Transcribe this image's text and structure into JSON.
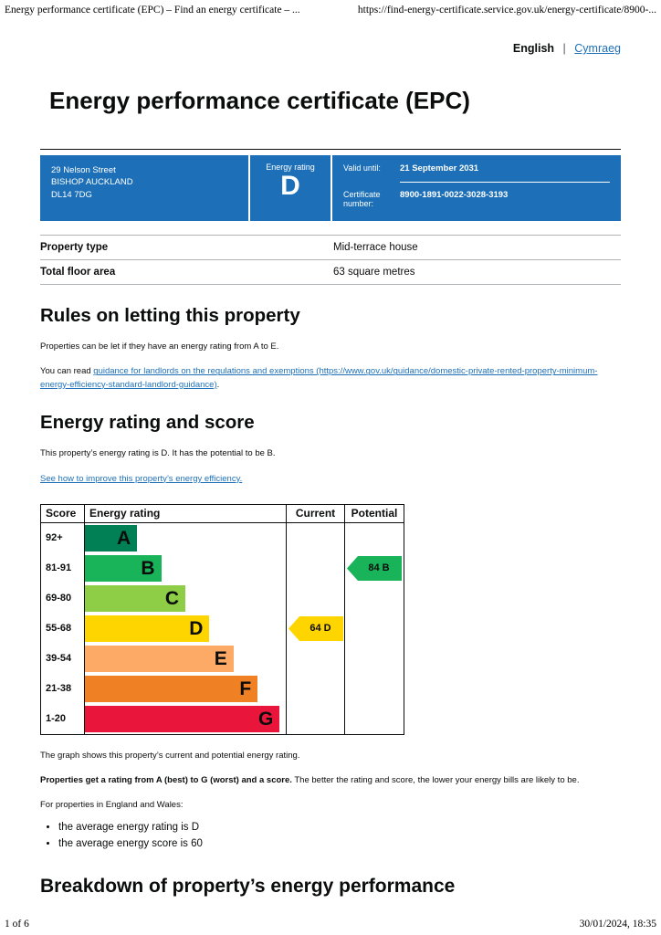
{
  "print_header": {
    "doc_title": "Energy performance certificate (EPC) – Find an energy certificate – ...",
    "url": "https://find-energy-certificate.service.gov.uk/energy-certificate/8900-..."
  },
  "print_footer": {
    "page_indicator": "1 of 6",
    "timestamp": "30/01/2024, 18:35"
  },
  "language_switcher": {
    "current": "English",
    "separator": "|",
    "alternate": "Cymraeg"
  },
  "page_title": "Energy performance certificate (EPC)",
  "summary": {
    "address_line1": "29 Nelson Street",
    "address_line2": "BISHOP AUCKLAND",
    "address_line3": "DL14 7DG",
    "rating_label": "Energy rating",
    "rating_value": "D",
    "valid_until_label": "Valid until:",
    "valid_until_value": "21 September 2031",
    "certificate_number_label": "Certificate number:",
    "certificate_number_value": "8900-1891-0022-3028-3193"
  },
  "property_facts": {
    "rows": [
      {
        "label": "Property type",
        "value": "Mid-terrace house"
      },
      {
        "label": "Total floor area",
        "value": "63 square metres"
      }
    ]
  },
  "letting_rules": {
    "heading": "Rules on letting this property",
    "intro": "Properties can be let if they have an energy rating from A to E.",
    "guidance_prefix": "You can read ",
    "guidance_link": "guidance for landlords on the regulations and exemptions (https://www.gov.uk/guidance/domestic-private-rented-property-minimum-energy-efficiency-standard-landlord-guidance)",
    "guidance_suffix": "."
  },
  "rating_score": {
    "heading": "Energy rating and score",
    "summary_text": "This property’s energy rating is D. It has the potential to be B.",
    "improve_link": "See how to improve this property’s energy efficiency."
  },
  "chart_data": {
    "type": "epc-rating-bands",
    "columns": {
      "score": "Score",
      "rating": "Energy rating",
      "current": "Current",
      "potential": "Potential"
    },
    "bands": [
      {
        "score": "92+",
        "letter": "A",
        "color": "#008054",
        "width_pct": 26
      },
      {
        "score": "81-91",
        "letter": "B",
        "color": "#19b459",
        "width_pct": 38
      },
      {
        "score": "69-80",
        "letter": "C",
        "color": "#8dce46",
        "width_pct": 50
      },
      {
        "score": "55-68",
        "letter": "D",
        "color": "#ffd500",
        "width_pct": 62
      },
      {
        "score": "39-54",
        "letter": "E",
        "color": "#fcaa65",
        "width_pct": 74
      },
      {
        "score": "21-38",
        "letter": "F",
        "color": "#ef8023",
        "width_pct": 86
      },
      {
        "score": "1-20",
        "letter": "G",
        "color": "#e9153b",
        "width_pct": 97
      }
    ],
    "current": {
      "label": "64 D",
      "score": 64,
      "letter": "D",
      "band_index": 3,
      "color": "#ffd500"
    },
    "potential": {
      "label": "84 B",
      "score": 84,
      "letter": "B",
      "band_index": 1,
      "color": "#19b459"
    }
  },
  "chart_notes": {
    "graph_note": "The graph shows this property’s current and potential energy rating.",
    "ratings_bold": "Properties get a rating from A (best) to G (worst) and a score.",
    "ratings_rest": " The better the rating and score, the lower your energy bills are likely to be.",
    "averages_intro": "For properties in England and Wales:",
    "average_points": [
      "the average energy rating is D",
      "the average energy score is 60"
    ]
  },
  "breakdown": {
    "heading": "Breakdown of property’s energy performance"
  },
  "colors": {
    "govuk_blue": "#1d70b8",
    "text": "#0b0c0c",
    "border_grey": "#b1b4b6"
  }
}
